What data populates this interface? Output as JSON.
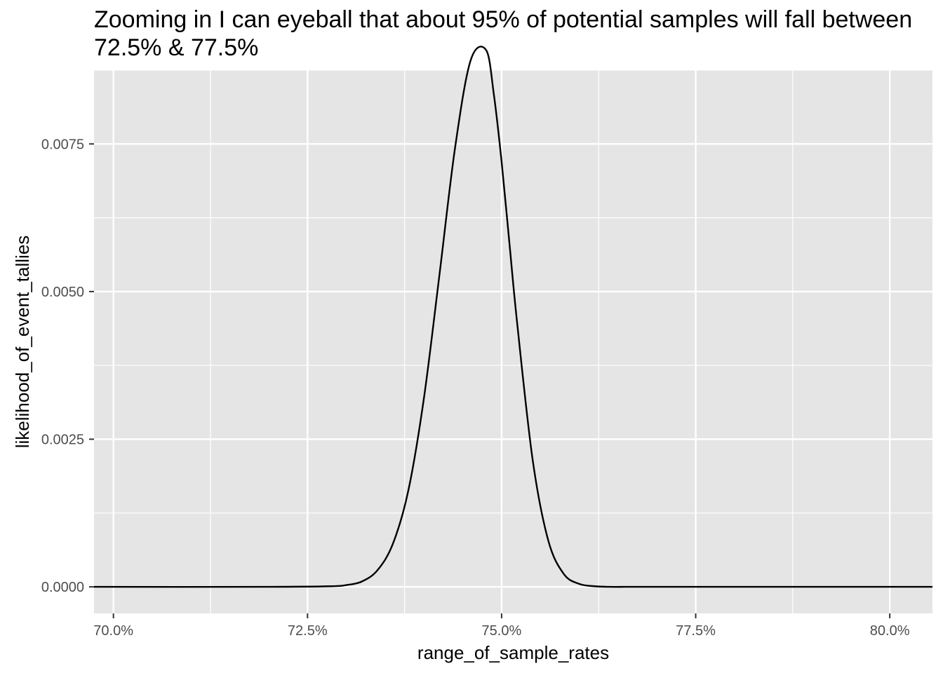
{
  "chart_data": {
    "type": "line",
    "title": "Zooming in I can eyeball that about 95% of potential samples will fall between\n72.5% & 77.5%",
    "xlabel": "range_of_sample_rates",
    "ylabel": "likelihood_of_event_tallies",
    "xlim": [
      0.6975,
      0.8055
    ],
    "ylim": [
      -0.00045,
      0.00875
    ],
    "x_ticks": [
      {
        "value": 0.7,
        "label": "70.0%"
      },
      {
        "value": 0.725,
        "label": "72.5%"
      },
      {
        "value": 0.75,
        "label": "75.0%"
      },
      {
        "value": 0.775,
        "label": "77.5%"
      },
      {
        "value": 0.8,
        "label": "80.0%"
      }
    ],
    "y_ticks": [
      {
        "value": 0.0,
        "label": "0.0000"
      },
      {
        "value": 0.0025,
        "label": "0.0025"
      },
      {
        "value": 0.005,
        "label": "0.0050"
      },
      {
        "value": 0.0075,
        "label": "0.0075"
      }
    ],
    "grid": true,
    "panel_background": "#e5e5e5",
    "grid_color": "#ffffff",
    "line_color": "#000000",
    "series": [
      {
        "x": [
          0.6975,
          0.72,
          0.728,
          0.73,
          0.732,
          0.734,
          0.736,
          0.738,
          0.74,
          0.742,
          0.744,
          0.746,
          0.748,
          0.749,
          0.75,
          0.751,
          0.752,
          0.754,
          0.756,
          0.758,
          0.76,
          0.762,
          0.764,
          0.766,
          0.768,
          0.77,
          0.772,
          0.78,
          0.8055
        ],
        "y": [
          0.0,
          0.0,
          1e-05,
          3e-05,
          9e-05,
          0.00028,
          0.00073,
          0.00164,
          0.0032,
          0.00529,
          0.00743,
          0.00891,
          0.00909,
          0.00834,
          0.0072,
          0.00583,
          0.00447,
          0.00215,
          0.00079,
          0.00022,
          5e-05,
          1e-05,
          0.0,
          0.0,
          0.0,
          0.0,
          0.0,
          0.0,
          0.0
        ]
      }
    ]
  }
}
